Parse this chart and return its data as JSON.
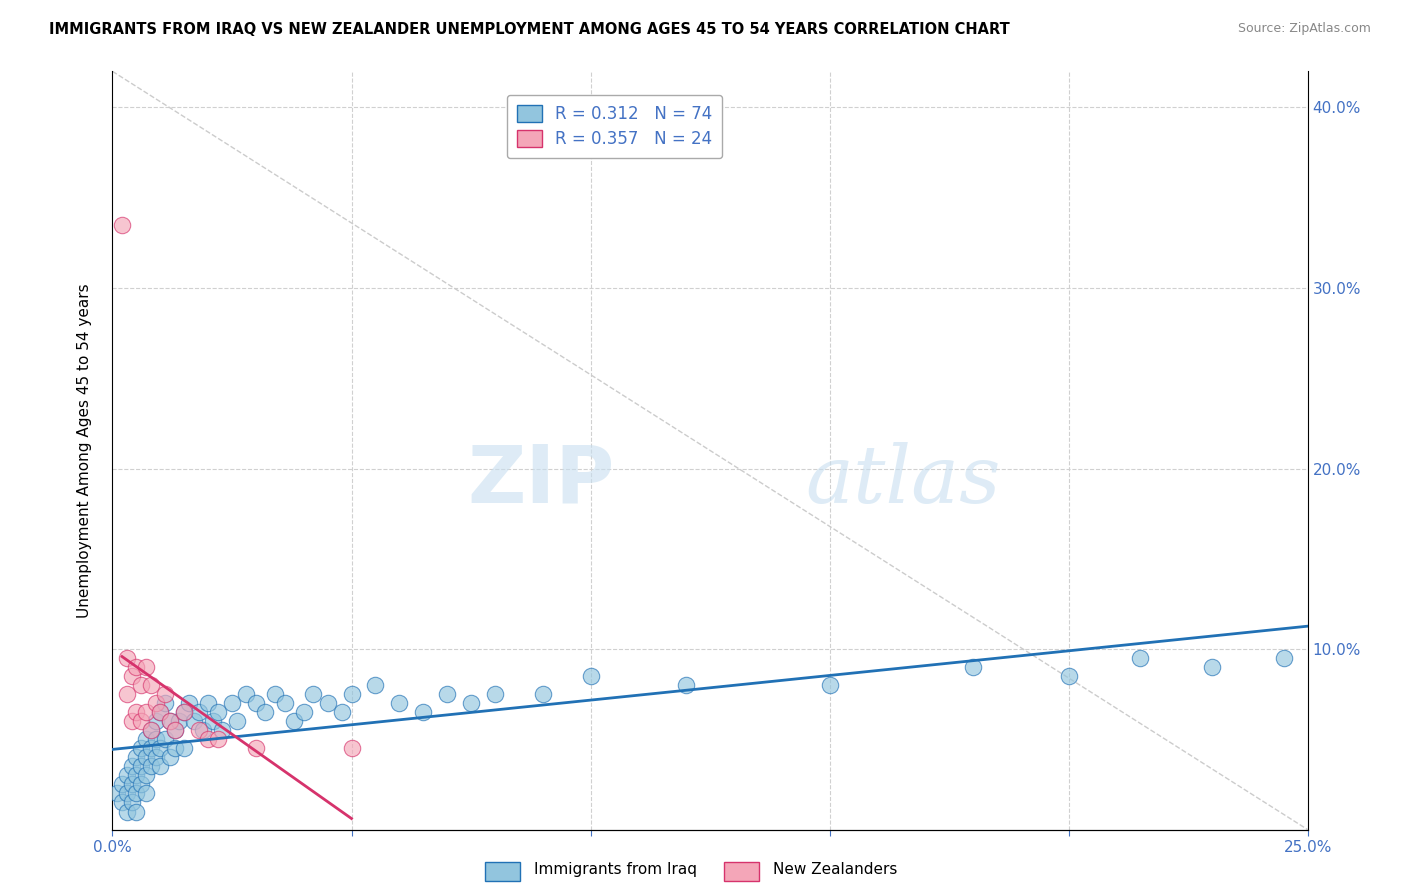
{
  "title": "IMMIGRANTS FROM IRAQ VS NEW ZEALANDER UNEMPLOYMENT AMONG AGES 45 TO 54 YEARS CORRELATION CHART",
  "source": "Source: ZipAtlas.com",
  "ylabel": "Unemployment Among Ages 45 to 54 years",
  "xlim": [
    0.0,
    0.25
  ],
  "ylim": [
    0.0,
    0.42
  ],
  "r_iraq": 0.312,
  "n_iraq": 74,
  "r_nz": 0.357,
  "n_nz": 24,
  "color_iraq": "#92c5de",
  "color_nz": "#f4a6b8",
  "color_iraq_line": "#2171b5",
  "color_nz_line": "#d6336c",
  "watermark_zip": "ZIP",
  "watermark_atlas": "atlas",
  "legend_label_iraq": "Immigrants from Iraq",
  "legend_label_nz": "New Zealanders",
  "iraq_x": [
    0.001,
    0.002,
    0.002,
    0.003,
    0.003,
    0.003,
    0.004,
    0.004,
    0.004,
    0.005,
    0.005,
    0.005,
    0.005,
    0.006,
    0.006,
    0.006,
    0.007,
    0.007,
    0.007,
    0.007,
    0.008,
    0.008,
    0.008,
    0.009,
    0.009,
    0.009,
    0.01,
    0.01,
    0.01,
    0.011,
    0.011,
    0.012,
    0.012,
    0.013,
    0.013,
    0.014,
    0.015,
    0.015,
    0.016,
    0.017,
    0.018,
    0.019,
    0.02,
    0.021,
    0.022,
    0.023,
    0.025,
    0.026,
    0.028,
    0.03,
    0.032,
    0.034,
    0.036,
    0.038,
    0.04,
    0.042,
    0.045,
    0.048,
    0.05,
    0.055,
    0.06,
    0.065,
    0.07,
    0.075,
    0.08,
    0.09,
    0.1,
    0.12,
    0.15,
    0.18,
    0.2,
    0.215,
    0.23,
    0.245
  ],
  "iraq_y": [
    0.02,
    0.025,
    0.015,
    0.03,
    0.02,
    0.01,
    0.035,
    0.025,
    0.015,
    0.04,
    0.03,
    0.02,
    0.01,
    0.045,
    0.035,
    0.025,
    0.05,
    0.04,
    0.03,
    0.02,
    0.055,
    0.045,
    0.035,
    0.06,
    0.05,
    0.04,
    0.065,
    0.045,
    0.035,
    0.07,
    0.05,
    0.06,
    0.04,
    0.055,
    0.045,
    0.06,
    0.065,
    0.045,
    0.07,
    0.06,
    0.065,
    0.055,
    0.07,
    0.06,
    0.065,
    0.055,
    0.07,
    0.06,
    0.075,
    0.07,
    0.065,
    0.075,
    0.07,
    0.06,
    0.065,
    0.075,
    0.07,
    0.065,
    0.075,
    0.08,
    0.07,
    0.065,
    0.075,
    0.07,
    0.075,
    0.075,
    0.085,
    0.08,
    0.08,
    0.09,
    0.085,
    0.095,
    0.09,
    0.095
  ],
  "nz_x": [
    0.002,
    0.003,
    0.003,
    0.004,
    0.004,
    0.005,
    0.005,
    0.006,
    0.006,
    0.007,
    0.007,
    0.008,
    0.008,
    0.009,
    0.01,
    0.011,
    0.012,
    0.013,
    0.015,
    0.018,
    0.02,
    0.022,
    0.03,
    0.05
  ],
  "nz_y": [
    0.335,
    0.095,
    0.075,
    0.085,
    0.06,
    0.09,
    0.065,
    0.08,
    0.06,
    0.09,
    0.065,
    0.08,
    0.055,
    0.07,
    0.065,
    0.075,
    0.06,
    0.055,
    0.065,
    0.055,
    0.05,
    0.05,
    0.045,
    0.045
  ]
}
